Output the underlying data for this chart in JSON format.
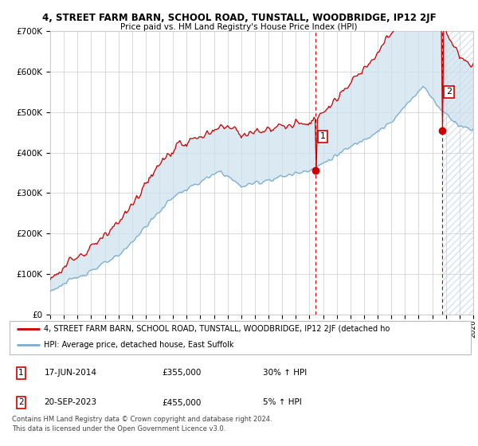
{
  "title": "4, STREET FARM BARN, SCHOOL ROAD, TUNSTALL, WOODBRIDGE, IP12 2JF",
  "subtitle": "Price paid vs. HM Land Registry's House Price Index (HPI)",
  "red_label": "4, STREET FARM BARN, SCHOOL ROAD, TUNSTALL, WOODBRIDGE, IP12 2JF (detached ho",
  "blue_label": "HPI: Average price, detached house, East Suffolk",
  "annotation1_date": "17-JUN-2014",
  "annotation1_price": "£355,000",
  "annotation1_hpi": "30% ↑ HPI",
  "annotation2_date": "20-SEP-2023",
  "annotation2_price": "£455,000",
  "annotation2_hpi": "5% ↑ HPI",
  "footer": "Contains HM Land Registry data © Crown copyright and database right 2024.\nThis data is licensed under the Open Government Licence v3.0.",
  "ylim": [
    0,
    700000
  ],
  "yticks": [
    0,
    100000,
    200000,
    300000,
    400000,
    500000,
    600000,
    700000
  ],
  "red_color": "#cc0000",
  "blue_color": "#7aadcf",
  "fill_color": "#cce0ee",
  "background_color": "#ffffff",
  "grid_color": "#cccccc",
  "vline_color": "#cc0000",
  "sale1_x": 2014.46,
  "sale1_y": 355000,
  "sale2_x": 2023.72,
  "sale2_y": 455000,
  "xmin": 1995,
  "xmax": 2026
}
